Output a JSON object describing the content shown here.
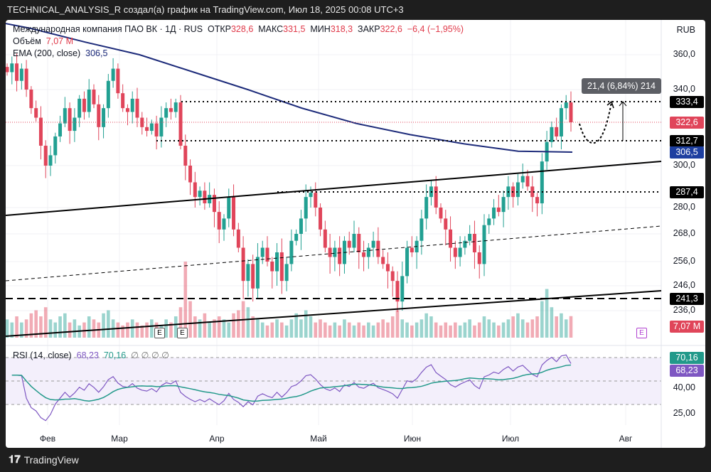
{
  "window_title": "TECHNICAL_ANALYSIS_R создал(а) график на TradingView.com, Июл 18, 2025 00:08 UTC+3",
  "legend": {
    "symbol": "Международная компания ПАО ВК · 1Д · RUS",
    "open_label": "ОТКР",
    "open": "328,6",
    "high_label": "МАКС",
    "high": "331,5",
    "low_label": "МИН",
    "low": "318,3",
    "close_label": "ЗАКР",
    "close": "322,6",
    "change": "−6,4 (−1,95%)",
    "volume_label": "Объём",
    "volume": "7,07 M",
    "ema_label": "EMA (200, close)",
    "ema": "306,5",
    "rsi_label": "RSI (14, close)",
    "rsi": "68,23",
    "rsi_ma": "70,16",
    "rsi_extra": "∅ ∅ ∅ ∅"
  },
  "currency": "RUB",
  "measure_label": "21,4 (6,84%) 214",
  "footer": "TradingView",
  "colors": {
    "up": "#22a092",
    "down": "#e0455a",
    "ema": "#1d2b7a",
    "rsi": "#7e57c2",
    "rsi_ma": "#22998a"
  },
  "chart_data": {
    "type": "candlestick",
    "price_axis_ticks": [
      "360,0",
      "340,0",
      "300,0",
      "280,0",
      "268,0",
      "256,0",
      "246,0",
      "236,0"
    ],
    "price_tags": [
      {
        "value": "333,4",
        "kind": "black"
      },
      {
        "value": "322,6",
        "kind": "red"
      },
      {
        "value": "312,7",
        "kind": "black"
      },
      {
        "value": "306,5",
        "kind": "blue"
      },
      {
        "value": "287,4",
        "kind": "black"
      },
      {
        "value": "241,3",
        "kind": "black"
      },
      {
        "value": "7,07 M",
        "kind": "red"
      }
    ],
    "rsi_axis_ticks": [
      "40,00",
      "25,00"
    ],
    "rsi_tags": [
      {
        "value": "70,16",
        "kind": "teal"
      },
      {
        "value": "68,23",
        "kind": "purple"
      }
    ],
    "months": [
      "Фев",
      "Мар",
      "Апр",
      "Май",
      "Июн",
      "Июл",
      "Авг"
    ],
    "earnings_marks": [
      "E",
      "E",
      "E"
    ],
    "closes": [
      350,
      355,
      345,
      352,
      340,
      330,
      325,
      310,
      300,
      305,
      315,
      322,
      330,
      318,
      325,
      335,
      328,
      340,
      332,
      320,
      330,
      345,
      352,
      338,
      330,
      328,
      335,
      325,
      320,
      318,
      322,
      315,
      325,
      330,
      328,
      333,
      310,
      300,
      292,
      285,
      288,
      282,
      286,
      278,
      270,
      275,
      285,
      270,
      262,
      248,
      255,
      245,
      258,
      262,
      256,
      252,
      260,
      248,
      255,
      265,
      268,
      275,
      285,
      287,
      280,
      270,
      262,
      258,
      262,
      255,
      265,
      262,
      268,
      260,
      258,
      262,
      265,
      258,
      255,
      252,
      248,
      240,
      250,
      262,
      260,
      265,
      275,
      285,
      290,
      280,
      275,
      270,
      262,
      258,
      262,
      265,
      268,
      260,
      255,
      272,
      275,
      280,
      278,
      285,
      290,
      285,
      292,
      295,
      290,
      285,
      282,
      302,
      312,
      320,
      315,
      330,
      333,
      322.6
    ],
    "volumes_m": [
      6,
      5,
      7,
      5,
      6,
      8,
      9,
      7,
      10,
      6,
      5,
      7,
      8,
      5,
      6,
      4,
      5,
      7,
      6,
      5,
      8,
      9,
      6,
      5,
      4,
      5,
      6,
      5,
      4,
      5,
      6,
      5,
      4,
      6,
      5,
      7,
      10,
      25,
      12,
      7,
      6,
      8,
      5,
      6,
      7,
      6,
      5,
      8,
      9,
      12,
      10,
      7,
      6,
      5,
      4,
      5,
      6,
      5,
      4,
      6,
      8,
      6,
      9,
      7,
      5,
      6,
      5,
      4,
      5,
      4,
      6,
      5,
      4,
      5,
      4,
      5,
      4,
      5,
      6,
      5,
      7,
      9,
      6,
      5,
      4,
      5,
      6,
      8,
      7,
      5,
      4,
      5,
      4,
      5,
      4,
      5,
      6,
      4,
      5,
      7,
      6,
      5,
      4,
      5,
      6,
      7,
      8,
      6,
      5,
      6,
      7,
      12,
      16,
      10,
      7,
      8,
      6,
      7.07
    ],
    "ema_200": [
      395,
      385,
      372,
      360,
      350,
      340,
      330,
      322,
      316,
      311,
      307,
      306.5
    ],
    "levels": {
      "resistance": "333,4",
      "current": "322,6",
      "support": "312,7",
      "ema": "306,5",
      "breakout": "287,4",
      "low": "241,3"
    }
  }
}
